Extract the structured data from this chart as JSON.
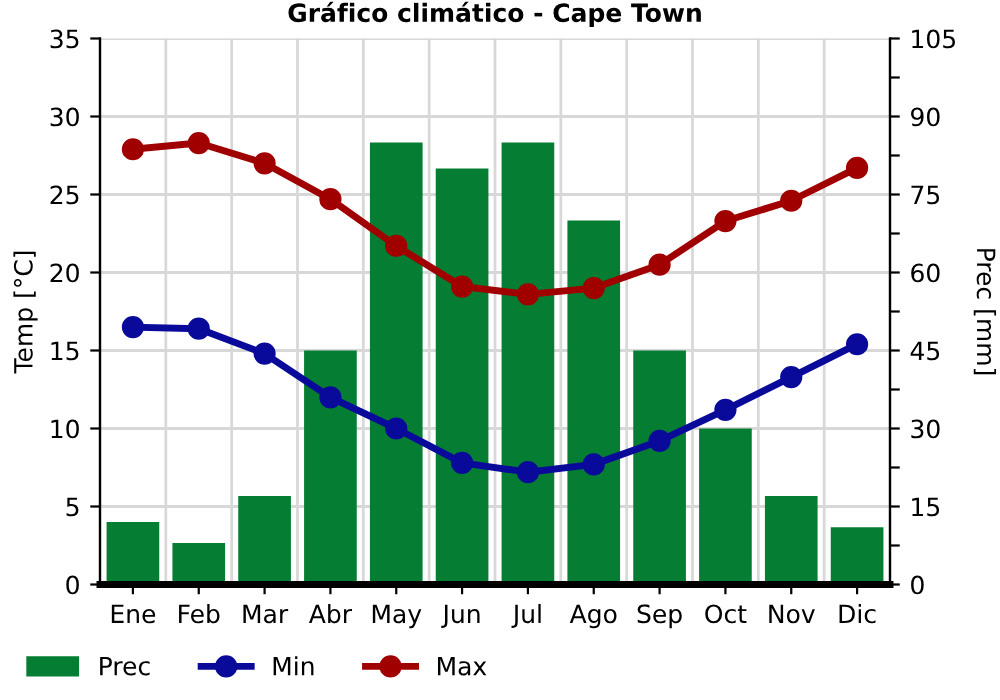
{
  "chart_data": {
    "type": "bar",
    "title": "Gráfico climático - Cape Town",
    "categories": [
      "Ene",
      "Feb",
      "Mar",
      "Abr",
      "May",
      "Jun",
      "Jul",
      "Ago",
      "Sep",
      "Oct",
      "Nov",
      "Dic"
    ],
    "series": [
      {
        "name": "Prec",
        "axis": "y2",
        "color": "#057d32",
        "values": [
          12,
          8,
          17,
          45,
          85,
          80,
          85,
          70,
          45,
          30,
          17,
          11
        ]
      },
      {
        "name": "Min",
        "type": "line",
        "color": "#0a0a9a",
        "marker": "circle",
        "values": [
          16.5,
          16.4,
          14.8,
          12.0,
          10.0,
          7.8,
          7.2,
          7.7,
          9.2,
          11.2,
          13.3,
          15.4
        ]
      },
      {
        "name": "Max",
        "type": "line",
        "color": "#a00000",
        "marker": "circle",
        "values": [
          27.9,
          28.3,
          27.0,
          24.7,
          21.7,
          19.1,
          18.6,
          19.0,
          20.5,
          23.3,
          24.6,
          26.7
        ]
      }
    ],
    "ylabel": "Temp [°C]",
    "y2label": "Prec [mm]",
    "ylim": [
      0,
      35
    ],
    "yticks": [
      0,
      5,
      10,
      15,
      20,
      25,
      30,
      35
    ],
    "y2lim": [
      0,
      105
    ],
    "y2ticks": [
      0,
      {
        "value": 7.5,
        "label": null
      },
      15,
      {
        "value": 22.5,
        "label": null
      },
      30,
      {
        "value": 37.5,
        "label": null
      },
      45,
      {
        "value": 52.5,
        "label": null
      },
      60,
      {
        "value": 67.5,
        "label": null
      },
      75,
      {
        "value": 82.5,
        "label": null
      },
      90,
      {
        "value": 97.5,
        "label": null
      },
      105
    ],
    "grid": true,
    "legend": "bottom",
    "line_style": "solid"
  }
}
